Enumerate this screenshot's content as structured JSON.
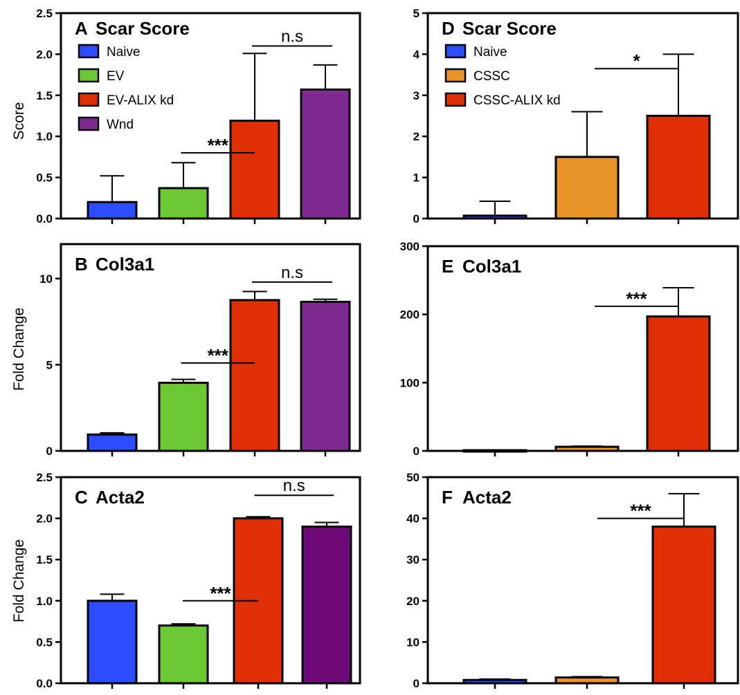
{
  "colors": {
    "naive": "#2b4cff",
    "ev": "#6cc832",
    "alix": "#e02f04",
    "wnd_a": "#7f2a90",
    "wnd_c": "#6d0877",
    "cssc": "#e99428"
  },
  "chart_data": [
    {
      "panel": "A",
      "type": "bar",
      "title": "Scar Score",
      "ylabel": "Score",
      "ylim": [
        0,
        2.5
      ],
      "yticks": [
        "0.0",
        "0.5",
        "1.0",
        "1.5",
        "2.0",
        "2.5"
      ],
      "categories": [
        "Naive",
        "EV",
        "EV-ALIX kd",
        "Wnd"
      ],
      "values": [
        0.2,
        0.37,
        1.19,
        1.57
      ],
      "errors": [
        0.32,
        0.31,
        0.82,
        0.3
      ],
      "colors": [
        "naive",
        "ev",
        "alix",
        "wnd_a"
      ],
      "legend": [
        "Naive",
        "EV",
        "EV-ALIX kd",
        "Wnd"
      ],
      "annotations": [
        {
          "text": "***",
          "from": 1,
          "to": 2,
          "y": 0.8
        },
        {
          "text": "n.s",
          "from": 2,
          "to": 3,
          "y": 2.1
        }
      ]
    },
    {
      "panel": "B",
      "type": "bar",
      "title": "Col3a1",
      "ylabel": "Fold Change",
      "ylim": [
        0,
        12
      ],
      "yticks": [
        "0",
        "5",
        "10"
      ],
      "categories": [
        "Naive",
        "EV",
        "EV-ALIX kd",
        "Wnd"
      ],
      "values": [
        0.95,
        3.95,
        8.75,
        8.65
      ],
      "errors": [
        0.1,
        0.2,
        0.5,
        0.15
      ],
      "colors": [
        "naive",
        "ev",
        "alix",
        "wnd_a"
      ],
      "annotations": [
        {
          "text": "***",
          "from": 1,
          "to": 2,
          "y": 5.1
        },
        {
          "text": "n.s",
          "from": 2,
          "to": 3,
          "y": 9.8
        }
      ]
    },
    {
      "panel": "C",
      "type": "bar",
      "title": "Acta2",
      "ylabel": "Fold Change",
      "ylim": [
        0,
        2.5
      ],
      "yticks": [
        "0.0",
        "0.5",
        "1.0",
        "1.5",
        "2.0",
        "2.5"
      ],
      "categories": [
        "Naive",
        "EV",
        "EV-ALIX kd",
        "Wnd"
      ],
      "values": [
        1.0,
        0.7,
        2.0,
        1.9
      ],
      "errors": [
        0.08,
        0.02,
        0.02,
        0.05
      ],
      "colors": [
        "naive",
        "ev",
        "alix",
        "wnd_c"
      ],
      "annotations": [
        {
          "text": "***",
          "from": 1,
          "to": 2,
          "y": 1.0
        },
        {
          "text": "n.s",
          "from": 2,
          "to": 3,
          "y": 2.28
        }
      ]
    },
    {
      "panel": "D",
      "type": "bar",
      "title": "Scar Score",
      "ylabel": "",
      "ylim": [
        0,
        5
      ],
      "yticks": [
        "0",
        "1",
        "2",
        "3",
        "4",
        "5"
      ],
      "categories": [
        "Naive",
        "CSSC",
        "CSSC-ALIX kd"
      ],
      "values": [
        0.07,
        1.5,
        2.5
      ],
      "errors": [
        0.35,
        1.1,
        1.5
      ],
      "colors": [
        "naive",
        "cssc",
        "alix"
      ],
      "legend": [
        "Naive",
        "CSSC",
        "CSSC-ALIX kd"
      ],
      "annotations": [
        {
          "text": "*",
          "from": 1,
          "to": 2,
          "y": 3.65
        }
      ]
    },
    {
      "panel": "E",
      "type": "bar",
      "title": "Col3a1",
      "ylabel": "",
      "ylim": [
        0,
        300
      ],
      "yticks": [
        "0",
        "100",
        "200",
        "300"
      ],
      "categories": [
        "Naive",
        "CSSC",
        "CSSC-ALIX kd"
      ],
      "values": [
        1,
        6,
        197
      ],
      "errors": [
        0,
        1,
        42
      ],
      "colors": [
        "naive",
        "cssc",
        "alix"
      ],
      "annotations": [
        {
          "text": "***",
          "from": 1,
          "to": 2,
          "y": 212
        }
      ]
    },
    {
      "panel": "F",
      "type": "bar",
      "title": "Acta2",
      "ylabel": "",
      "ylim": [
        0,
        50
      ],
      "yticks": [
        "0",
        "10",
        "20",
        "30",
        "40",
        "50"
      ],
      "categories": [
        "Naive",
        "CSSC",
        "CSSC-ALIX kd"
      ],
      "values": [
        0.8,
        1.4,
        38
      ],
      "errors": [
        0.2,
        0.2,
        8
      ],
      "colors": [
        "naive",
        "cssc",
        "alix"
      ],
      "annotations": [
        {
          "text": "***",
          "from": 1,
          "to": 2,
          "y": 40
        }
      ]
    }
  ]
}
